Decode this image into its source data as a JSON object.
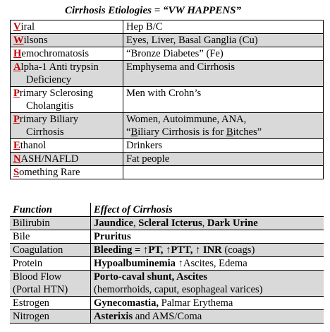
{
  "title": "Cirrhosis Etiologies = “VW HAPPENS”",
  "etiologies": [
    {
      "letter": "V",
      "rest": "iral",
      "cont": "",
      "effect": "Hep B/C",
      "effect2": ""
    },
    {
      "letter": "W",
      "rest": "ilsons",
      "cont": "",
      "effect": "Eyes, Liver, Basal Ganglia (Cu)",
      "effect2": ""
    },
    {
      "letter": "H",
      "rest": "emochromatosis",
      "cont": "",
      "effect": "“Bronze Diabetes”   (Fe)",
      "effect2": ""
    },
    {
      "letter": "A",
      "rest": "lpha-1 Anti trypsin",
      "cont": "Deficiency",
      "effect": "Emphysema and Cirrhosis",
      "effect2": ""
    },
    {
      "letter": "P",
      "rest": "rimary Sclerosing",
      "cont": "Cholangitis",
      "effect": "Men with Crohn’s",
      "effect2": ""
    },
    {
      "letter": "P",
      "rest": "rimary Biliary",
      "cont": "Cirrhosis",
      "effect": "Women, Autoimmune, ANA,",
      "effect2_a": "“",
      "effect2_b1": "B",
      "effect2_c": "iliary Cirrhosis is for ",
      "effect2_b2": "B",
      "effect2_d": "itches”"
    },
    {
      "letter": "E",
      "rest": "thanol",
      "cont": "",
      "effect": "Drinkers",
      "effect2": ""
    },
    {
      "letter": "N",
      "rest": "ASH/NAFLD",
      "cont": "",
      "effect": "Fat people",
      "effect2": ""
    },
    {
      "letter": "S",
      "rest": "omething Rare",
      "cont": "",
      "effect": "",
      "effect2": ""
    }
  ],
  "functions_header": {
    "col1": "Function",
    "col2": "Effect of Cirrhosis"
  },
  "functions": [
    {
      "fn": "Bilirubin",
      "parts": [
        [
          "Jaundice",
          true
        ],
        [
          ", ",
          false
        ],
        [
          "Scleral Icterus",
          true
        ],
        [
          ", ",
          false
        ],
        [
          "Dark Urine",
          true
        ]
      ]
    },
    {
      "fn": "Bile",
      "parts": [
        [
          "Pruritus",
          true
        ]
      ]
    },
    {
      "fn": "Coagulation",
      "parts": [
        [
          "Bleeding = ↑PT, ↑PTT, ↑ INR",
          true
        ],
        [
          " (coags)",
          false
        ]
      ]
    },
    {
      "fn": "Protein",
      "parts": [
        [
          "Hypoalbuminemia",
          true
        ],
        [
          " ↑Ascites, Edema",
          false
        ]
      ]
    },
    {
      "fn": "Blood Flow",
      "fn2": "(Portal HTN)",
      "parts": [
        [
          "Porto-caval shunt, Ascites",
          true
        ]
      ],
      "parts2": "(hemorrhoids, caput, esophageal varices)"
    },
    {
      "fn": "Estrogen",
      "parts": [
        [
          "Gynecomastia,",
          true
        ],
        [
          " Palmar Erythema",
          false
        ]
      ]
    },
    {
      "fn": "Nitrogen",
      "parts": [
        [
          "Asterixis",
          true
        ],
        [
          " and AMS/Coma",
          false
        ]
      ]
    }
  ]
}
